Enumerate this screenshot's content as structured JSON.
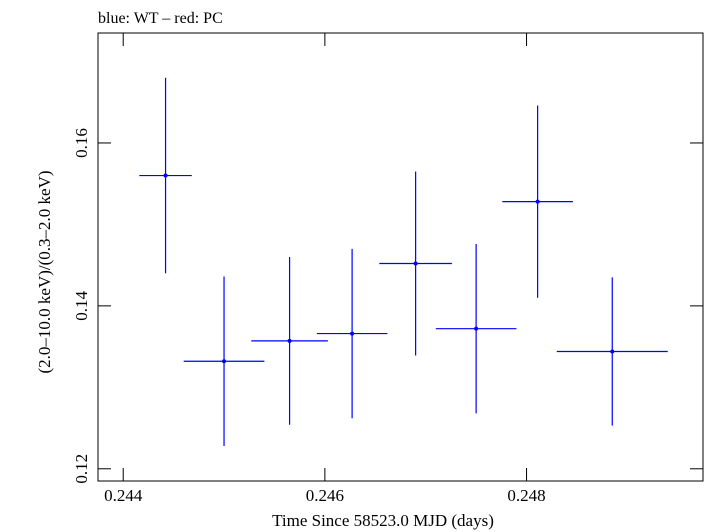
{
  "chart_data": {
    "type": "scatter",
    "title": "blue: WT – red: PC",
    "xlabel": "Time Since 58523.0 MJD (days)",
    "ylabel": "(2.0–10.0 keV)/(0.3–2.0 keV)",
    "xlim": [
      0.24375,
      0.24975
    ],
    "ylim": [
      0.1185,
      0.1735
    ],
    "xticks": [
      0.244,
      0.246,
      0.248
    ],
    "xtick_labels": [
      "0.244",
      "0.246",
      "0.248"
    ],
    "yticks": [
      0.12,
      0.14,
      0.16
    ],
    "ytick_labels": [
      "0.12",
      "0.14",
      "0.16"
    ],
    "series": [
      {
        "name": "WT",
        "color": "#0000ff",
        "points": [
          {
            "x": 0.24442,
            "xerr": 0.00026,
            "y": 0.156,
            "yerr": 0.012
          },
          {
            "x": 0.245,
            "xerr": 0.0004,
            "y": 0.1332,
            "yerr": 0.0104
          },
          {
            "x": 0.24565,
            "xerr": 0.00038,
            "y": 0.1357,
            "yerr": 0.0103
          },
          {
            "x": 0.24627,
            "xerr": 0.00035,
            "y": 0.1366,
            "yerr": 0.0104
          },
          {
            "x": 0.2469,
            "xerr": 0.00036,
            "y": 0.1452,
            "yerr": 0.0113
          },
          {
            "x": 0.2475,
            "xerr": 0.0004,
            "y": 0.1372,
            "yerr": 0.0104
          },
          {
            "x": 0.24811,
            "xerr": 0.00035,
            "y": 0.1528,
            "yerr": 0.0118
          },
          {
            "x": 0.24885,
            "xerr": 0.00055,
            "y": 0.1344,
            "yerr": 0.0091
          }
        ]
      }
    ]
  }
}
